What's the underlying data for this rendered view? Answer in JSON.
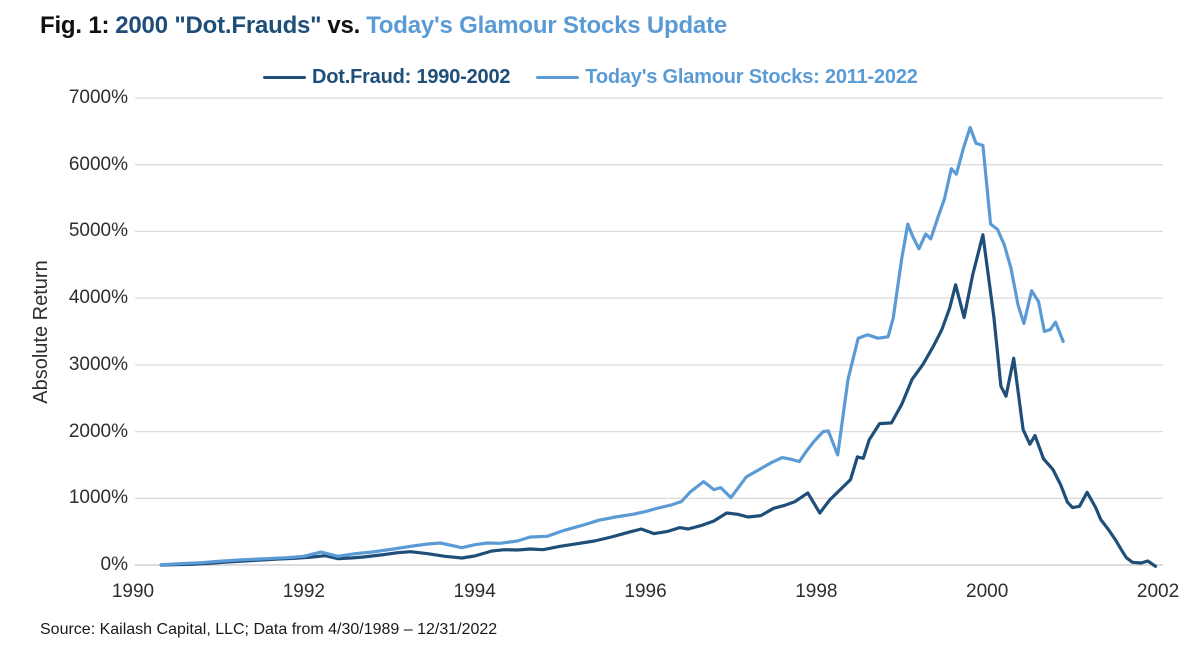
{
  "title": {
    "prefix": "Fig. 1:",
    "dark_part": "2000 \"Dot.Frauds\"",
    "mid_part": "vs.",
    "light_part": "Today's Glamour Stocks Update"
  },
  "legend": {
    "item1": "Dot.Fraud: 1990-2002",
    "item2": "Today's Glamour Stocks: 2011-2022"
  },
  "source_note": "Source: Kailash Capital, LLC; Data from 4/30/1989 – 12/31/2022",
  "colors": {
    "navy": "#1F4E79",
    "light_blue": "#5B9BD5",
    "title_black": "#111111",
    "axis_text": "#2e2e2e",
    "gridline": "#DBDBDB",
    "zero_axis_line": "#C6C6C6",
    "background": "#FFFFFF"
  },
  "chart_data": {
    "type": "line",
    "title": "Fig. 1: 2000 \"Dot.Frauds\" vs. Today's Glamour Stocks Update",
    "xlabel": "",
    "ylabel": "Absolute Return",
    "xlim": [
      1990,
      2002
    ],
    "ylim": [
      0,
      7000
    ],
    "y_unit": "%",
    "grid": "horizontal",
    "legend_position": "top-center",
    "x_tick_labels": [
      "1990",
      "1992",
      "1994",
      "1996",
      "1998",
      "2000",
      "2002"
    ],
    "y_tick_labels": [
      "0%",
      "1000%",
      "2000%",
      "3000%",
      "4000%",
      "5000%",
      "6000%",
      "7000%"
    ],
    "series": [
      {
        "name": "Dot.Fraud: 1990-2002",
        "color": "#1F4E79",
        "points": [
          [
            1990.33,
            0
          ],
          [
            1990.5,
            5
          ],
          [
            1990.7,
            10
          ],
          [
            1990.9,
            25
          ],
          [
            1991.1,
            45
          ],
          [
            1991.3,
            60
          ],
          [
            1991.5,
            75
          ],
          [
            1991.7,
            90
          ],
          [
            1991.9,
            100
          ],
          [
            1992.1,
            120
          ],
          [
            1992.25,
            140
          ],
          [
            1992.4,
            95
          ],
          [
            1992.55,
            105
          ],
          [
            1992.7,
            120
          ],
          [
            1992.9,
            150
          ],
          [
            1993.1,
            185
          ],
          [
            1993.25,
            200
          ],
          [
            1993.45,
            170
          ],
          [
            1993.65,
            130
          ],
          [
            1993.85,
            105
          ],
          [
            1994.0,
            135
          ],
          [
            1994.2,
            210
          ],
          [
            1994.35,
            230
          ],
          [
            1994.5,
            225
          ],
          [
            1994.65,
            240
          ],
          [
            1994.8,
            230
          ],
          [
            1995.0,
            280
          ],
          [
            1995.2,
            320
          ],
          [
            1995.4,
            360
          ],
          [
            1995.6,
            420
          ],
          [
            1995.8,
            490
          ],
          [
            1995.95,
            540
          ],
          [
            1996.1,
            470
          ],
          [
            1996.25,
            500
          ],
          [
            1996.4,
            560
          ],
          [
            1996.5,
            540
          ],
          [
            1996.65,
            590
          ],
          [
            1996.8,
            660
          ],
          [
            1996.95,
            780
          ],
          [
            1997.08,
            760
          ],
          [
            1997.2,
            720
          ],
          [
            1997.35,
            740
          ],
          [
            1997.5,
            850
          ],
          [
            1997.62,
            890
          ],
          [
            1997.75,
            950
          ],
          [
            1997.9,
            1080
          ],
          [
            1998.04,
            780
          ],
          [
            1998.16,
            980
          ],
          [
            1998.28,
            1130
          ],
          [
            1998.4,
            1280
          ],
          [
            1998.48,
            1620
          ],
          [
            1998.55,
            1600
          ],
          [
            1998.62,
            1880
          ],
          [
            1998.74,
            2120
          ],
          [
            1998.88,
            2130
          ],
          [
            1999.0,
            2410
          ],
          [
            1999.12,
            2780
          ],
          [
            1999.25,
            3010
          ],
          [
            1999.37,
            3280
          ],
          [
            1999.47,
            3530
          ],
          [
            1999.56,
            3850
          ],
          [
            1999.63,
            4200
          ],
          [
            1999.73,
            3710
          ],
          [
            1999.83,
            4350
          ],
          [
            1999.95,
            4950
          ],
          [
            2000.08,
            3700
          ],
          [
            2000.16,
            2680
          ],
          [
            2000.22,
            2530
          ],
          [
            2000.31,
            3100
          ],
          [
            2000.42,
            2030
          ],
          [
            2000.5,
            1810
          ],
          [
            2000.56,
            1940
          ],
          [
            2000.66,
            1590
          ],
          [
            2000.77,
            1430
          ],
          [
            2000.86,
            1200
          ],
          [
            2000.94,
            940
          ],
          [
            2001.0,
            860
          ],
          [
            2001.08,
            880
          ],
          [
            2001.17,
            1090
          ],
          [
            2001.27,
            860
          ],
          [
            2001.33,
            680
          ],
          [
            2001.42,
            530
          ],
          [
            2001.5,
            380
          ],
          [
            2001.57,
            230
          ],
          [
            2001.63,
            110
          ],
          [
            2001.7,
            40
          ],
          [
            2001.8,
            30
          ],
          [
            2001.88,
            60
          ],
          [
            2001.97,
            -20
          ]
        ]
      },
      {
        "name": "Today's Glamour Stocks: 2011-2022",
        "color": "#5B9BD5",
        "points": [
          [
            1990.33,
            5
          ],
          [
            1990.55,
            20
          ],
          [
            1990.8,
            35
          ],
          [
            1991.05,
            60
          ],
          [
            1991.3,
            80
          ],
          [
            1991.55,
            95
          ],
          [
            1991.8,
            110
          ],
          [
            1992.0,
            130
          ],
          [
            1992.2,
            195
          ],
          [
            1992.4,
            130
          ],
          [
            1992.6,
            170
          ],
          [
            1992.8,
            195
          ],
          [
            1993.05,
            240
          ],
          [
            1993.25,
            280
          ],
          [
            1993.45,
            315
          ],
          [
            1993.6,
            330
          ],
          [
            1993.85,
            260
          ],
          [
            1994.0,
            305
          ],
          [
            1994.15,
            330
          ],
          [
            1994.3,
            325
          ],
          [
            1994.5,
            360
          ],
          [
            1994.65,
            420
          ],
          [
            1994.85,
            430
          ],
          [
            1995.05,
            520
          ],
          [
            1995.25,
            590
          ],
          [
            1995.45,
            670
          ],
          [
            1995.65,
            720
          ],
          [
            1995.85,
            760
          ],
          [
            1996.0,
            800
          ],
          [
            1996.15,
            855
          ],
          [
            1996.3,
            900
          ],
          [
            1996.42,
            950
          ],
          [
            1996.52,
            1090
          ],
          [
            1996.6,
            1170
          ],
          [
            1996.68,
            1250
          ],
          [
            1996.8,
            1130
          ],
          [
            1996.88,
            1160
          ],
          [
            1997.0,
            1010
          ],
          [
            1997.18,
            1320
          ],
          [
            1997.33,
            1430
          ],
          [
            1997.48,
            1540
          ],
          [
            1997.6,
            1610
          ],
          [
            1997.72,
            1580
          ],
          [
            1997.8,
            1550
          ],
          [
            1997.88,
            1700
          ],
          [
            1997.97,
            1850
          ],
          [
            1998.08,
            2000
          ],
          [
            1998.14,
            2010
          ],
          [
            1998.25,
            1650
          ],
          [
            1998.37,
            2780
          ],
          [
            1998.49,
            3400
          ],
          [
            1998.6,
            3450
          ],
          [
            1998.72,
            3400
          ],
          [
            1998.84,
            3420
          ],
          [
            1998.9,
            3700
          ],
          [
            1999.0,
            4600
          ],
          [
            1999.07,
            5110
          ],
          [
            1999.13,
            4920
          ],
          [
            1999.2,
            4740
          ],
          [
            1999.28,
            4960
          ],
          [
            1999.34,
            4890
          ],
          [
            1999.42,
            5200
          ],
          [
            1999.5,
            5490
          ],
          [
            1999.58,
            5940
          ],
          [
            1999.64,
            5860
          ],
          [
            1999.72,
            6240
          ],
          [
            1999.8,
            6560
          ],
          [
            1999.87,
            6320
          ],
          [
            1999.95,
            6290
          ],
          [
            2000.04,
            5110
          ],
          [
            2000.12,
            5030
          ],
          [
            2000.2,
            4800
          ],
          [
            2000.28,
            4440
          ],
          [
            2000.36,
            3900
          ],
          [
            2000.43,
            3620
          ],
          [
            2000.52,
            4110
          ],
          [
            2000.6,
            3950
          ],
          [
            2000.67,
            3500
          ],
          [
            2000.74,
            3530
          ],
          [
            2000.8,
            3640
          ],
          [
            2000.89,
            3350
          ]
        ]
      }
    ]
  }
}
